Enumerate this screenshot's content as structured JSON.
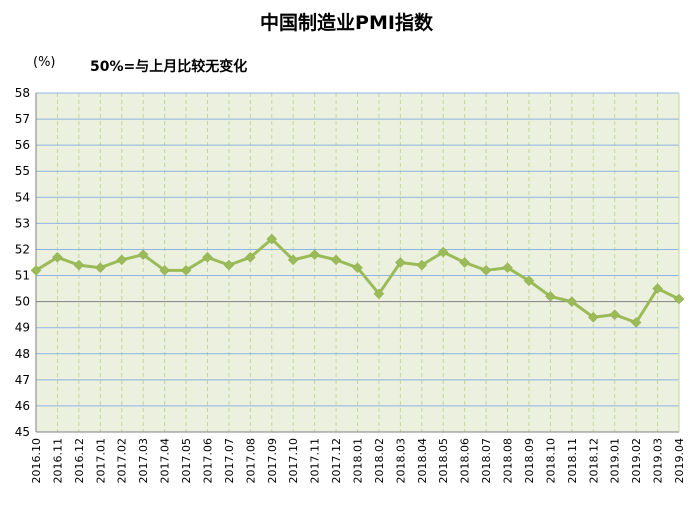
{
  "chart_data": {
    "type": "line",
    "title": "中国制造业PMI指数",
    "ylabel": "(%)",
    "annotation": "50%=与上月比较无变化",
    "categories": [
      "2016.10",
      "2016.11",
      "2016.12",
      "2017.01",
      "2017.02",
      "2017.03",
      "2017.04",
      "2017.05",
      "2017.06",
      "2017.07",
      "2017.08",
      "2017.09",
      "2017.10",
      "2017.11",
      "2017.12",
      "2018.01",
      "2018.02",
      "2018.03",
      "2018.04",
      "2018.05",
      "2018.06",
      "2018.07",
      "2018.08",
      "2018.09",
      "2018.10",
      "2018.11",
      "2018.12",
      "2019.01",
      "2019.02",
      "2019.03",
      "2019.04"
    ],
    "series": [
      {
        "values": [
          51.2,
          51.7,
          51.4,
          51.3,
          51.6,
          51.8,
          51.2,
          51.2,
          51.7,
          51.4,
          51.7,
          52.4,
          51.6,
          51.8,
          51.6,
          51.3,
          50.3,
          51.5,
          51.4,
          51.9,
          51.5,
          51.2,
          51.3,
          50.8,
          50.2,
          50.0,
          49.4,
          49.5,
          49.2,
          50.5,
          50.1
        ]
      }
    ],
    "yticks": [
      45,
      46,
      47,
      48,
      49,
      50,
      51,
      52,
      53,
      54,
      55,
      56,
      57,
      58
    ],
    "ylim": [
      45,
      58
    ],
    "grid": true,
    "colors": {
      "line": "#9bbb59",
      "plot_bg": "#ebf1de",
      "hgrid": "#8eb4e3",
      "vgrid": "#c3d69b"
    }
  }
}
